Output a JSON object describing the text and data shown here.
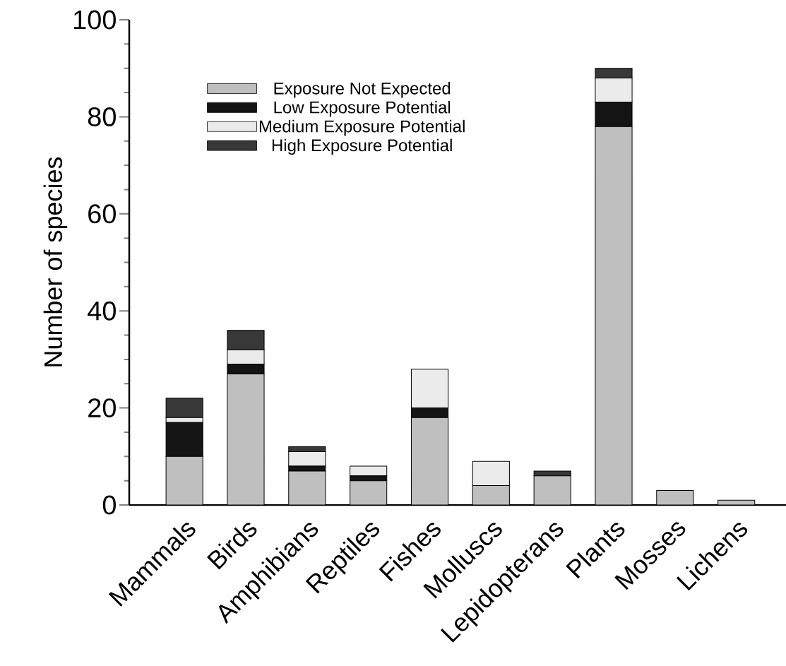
{
  "chart_data": {
    "type": "bar",
    "stacked": true,
    "ylabel": "Number of species",
    "categories": [
      "Mammals",
      "Birds",
      "Amphibians",
      "Reptiles",
      "Fishes",
      "Molluscs",
      "Lepidopterans",
      "Plants",
      "Mosses",
      "Lichens"
    ],
    "series": [
      {
        "name": "Exposure Not Expected",
        "color": "#bfbfbf",
        "values": [
          10,
          27,
          7,
          5,
          18,
          4,
          6,
          78,
          3,
          1
        ]
      },
      {
        "name": "Low Exposure Potential",
        "color": "#141414",
        "values": [
          7,
          2,
          1,
          1,
          2,
          0,
          0,
          5,
          0,
          0
        ]
      },
      {
        "name": "Medium Exposure Potential",
        "color": "#ebebeb",
        "values": [
          1,
          3,
          3,
          2,
          8,
          5,
          0,
          5,
          0,
          0
        ]
      },
      {
        "name": "High Exposure Potential",
        "color": "#383838",
        "values": [
          4,
          4,
          1,
          0,
          0,
          0,
          1,
          2,
          0,
          0
        ]
      }
    ],
    "ylim": [
      0,
      100
    ],
    "yticks": [
      0,
      20,
      40,
      60,
      80,
      100
    ],
    "grid": false,
    "legend": "top left"
  }
}
